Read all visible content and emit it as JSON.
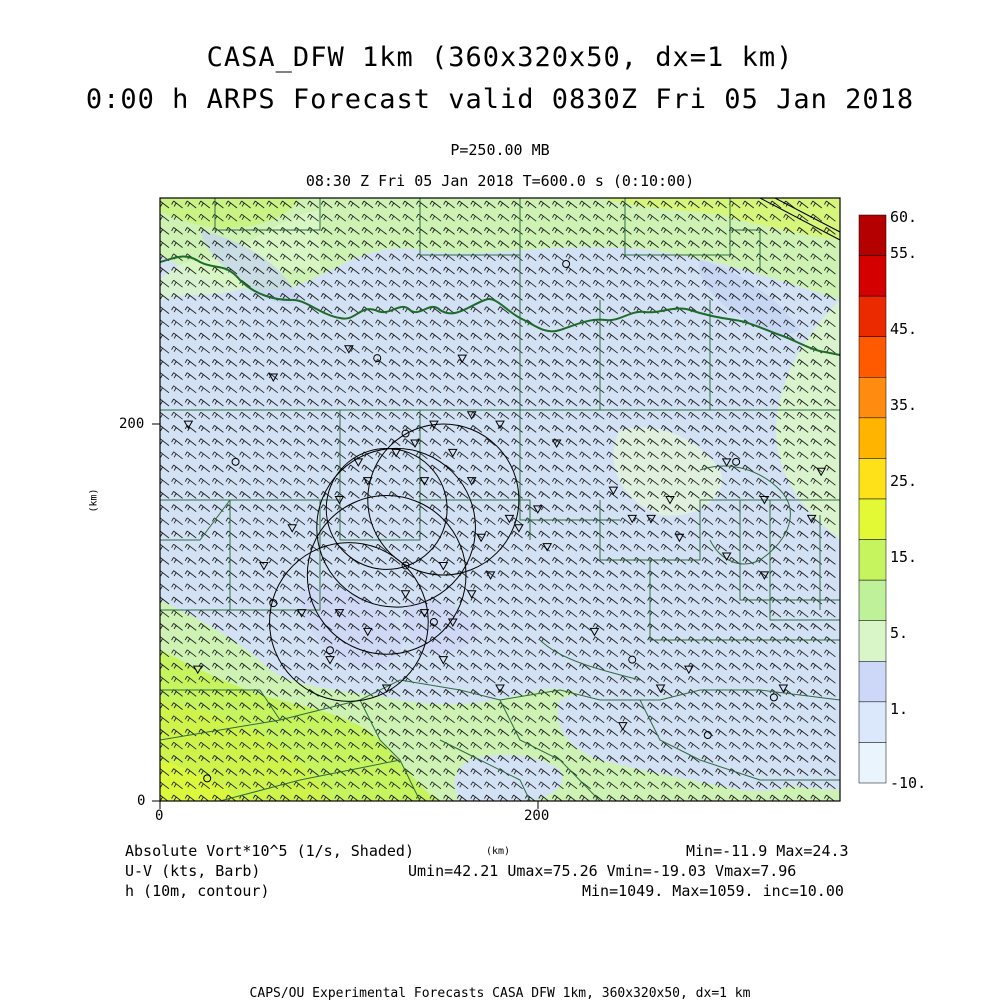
{
  "title": {
    "line1": "CASA_DFW 1km (360x320x50, dx=1 km)",
    "line2": "0:00 h ARPS Forecast valid 0830Z Fri 05 Jan 2018"
  },
  "subtitle": {
    "level": "P=250.00 MB",
    "time": "08:30 Z Fri 05 Jan 2018   T=600.0 s (0:10:00)"
  },
  "axes": {
    "x_ticks": [
      "0",
      "200"
    ],
    "y_ticks": [
      "0",
      "200"
    ],
    "xlabel": "(km)",
    "ylabel": "(km)",
    "xlim": [
      0,
      360
    ],
    "ylim": [
      0,
      320
    ]
  },
  "colorbar": {
    "labels": [
      "60.",
      "55.",
      "45.",
      "35.",
      "25.",
      "15.",
      "5.",
      "1.",
      "-10."
    ],
    "colors": [
      "#b50000",
      "#d40000",
      "#ec2a00",
      "#ff5a00",
      "#ff8c10",
      "#ffb400",
      "#ffe11a",
      "#e3f936",
      "#c6f45e",
      "#bff19a",
      "#d9f6c8",
      "#cdd7f7",
      "#dbe8fb",
      "#e9f4fc"
    ]
  },
  "legend": {
    "line1_left": "Absolute Vort*10^5 (1/s, Shaded)",
    "line1_right": "Min=-11.9 Max=24.3",
    "line2_left": "U-V (kts, Barb)",
    "line2_right": "Umin=42.21 Umax=75.26 Vmin=-19.03 Vmax=7.96",
    "line3_left": "h (10m, contour)",
    "line3_right": "Min=1049. Max=1059. inc=10.00"
  },
  "footer": "CAPS/OU Experimental Forecasts  CASA DFW 1km, 360x320x50, dx=1 km",
  "map": {
    "radars": [
      {
        "x": 100,
        "y": 95,
        "r": 42
      },
      {
        "x": 120,
        "y": 120,
        "r": 42
      },
      {
        "x": 125,
        "y": 145,
        "r": 42
      },
      {
        "x": 150,
        "y": 160,
        "r": 40
      },
      {
        "x": 120,
        "y": 155,
        "r": 32
      }
    ],
    "stations": [
      [
        60,
        225
      ],
      [
        100,
        240
      ],
      [
        160,
        235
      ],
      [
        70,
        145
      ],
      [
        130,
        110
      ],
      [
        150,
        125
      ],
      [
        170,
        140
      ],
      [
        140,
        170
      ],
      [
        110,
        170
      ],
      [
        95,
        160
      ],
      [
        105,
        180
      ],
      [
        125,
        185
      ],
      [
        135,
        190
      ],
      [
        155,
        185
      ],
      [
        165,
        170
      ],
      [
        185,
        150
      ],
      [
        190,
        145
      ],
      [
        200,
        155
      ],
      [
        205,
        135
      ],
      [
        180,
        60
      ],
      [
        230,
        90
      ],
      [
        280,
        70
      ],
      [
        300,
        130
      ],
      [
        320,
        160
      ],
      [
        345,
        150
      ],
      [
        350,
        175
      ],
      [
        150,
        75
      ],
      [
        120,
        60
      ],
      [
        110,
        90
      ],
      [
        90,
        75
      ],
      [
        95,
        100
      ],
      [
        75,
        100
      ],
      [
        140,
        100
      ],
      [
        155,
        95
      ],
      [
        165,
        110
      ],
      [
        175,
        120
      ],
      [
        145,
        200
      ],
      [
        165,
        205
      ],
      [
        240,
        165
      ],
      [
        270,
        160
      ],
      [
        330,
        60
      ],
      [
        260,
        150
      ],
      [
        210,
        190
      ],
      [
        180,
        200
      ],
      [
        20,
        70
      ],
      [
        55,
        125
      ],
      [
        15,
        200
      ],
      [
        250,
        150
      ],
      [
        275,
        140
      ],
      [
        320,
        120
      ],
      [
        265,
        60
      ],
      [
        245,
        40
      ],
      [
        300,
        180
      ]
    ],
    "circle_stations": [
      [
        60,
        105
      ],
      [
        90,
        80
      ],
      [
        145,
        95
      ],
      [
        250,
        75
      ],
      [
        290,
        35
      ],
      [
        305,
        180
      ],
      [
        325,
        55
      ],
      [
        130,
        125
      ],
      [
        25,
        12
      ],
      [
        40,
        180
      ],
      [
        130,
        195
      ],
      [
        215,
        285
      ],
      [
        115,
        235
      ]
    ]
  }
}
